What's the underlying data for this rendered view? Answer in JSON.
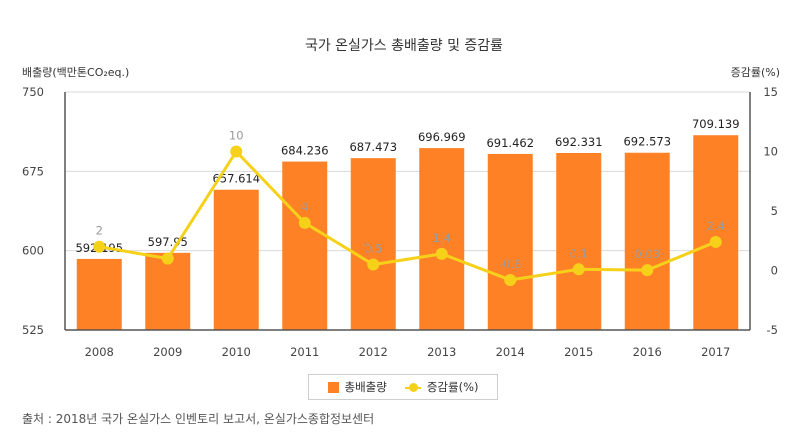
{
  "chart_data": {
    "type": "bar",
    "title": "국가 온실가스 총배출량 및 증감률",
    "ylabel": "배출량(백만톤CO₂eq.)",
    "y2label": "증감률(%)",
    "categories": [
      "2008",
      "2009",
      "2010",
      "2011",
      "2012",
      "2013",
      "2014",
      "2015",
      "2016",
      "2017"
    ],
    "ylim": [
      525,
      750
    ],
    "yticks": [
      525,
      600,
      675,
      750
    ],
    "y2lim": [
      -5,
      15
    ],
    "y2ticks": [
      -5,
      0,
      5,
      10,
      15
    ],
    "grid": true,
    "legend_position": "bottom",
    "series": [
      {
        "name": "총배출량",
        "type": "bar",
        "axis": "left",
        "color": "#ff8125",
        "values": [
          592.195,
          597.95,
          657.614,
          684.236,
          687.473,
          696.969,
          691.462,
          692.331,
          692.573,
          709.139
        ],
        "labels": [
          "592.195",
          "597.95",
          "657.614",
          "684.236",
          "687.473",
          "696.969",
          "691.462",
          "692.331",
          "692.573",
          "709.139"
        ]
      },
      {
        "name": "증감률(%)",
        "type": "line",
        "axis": "right",
        "color": "#f5d11a",
        "values": [
          2,
          1.0,
          10,
          4,
          0.5,
          1.4,
          -0.8,
          0.1,
          0.03,
          2.4
        ],
        "labels": [
          "2",
          "",
          "10",
          "4",
          "0.5",
          "1.4",
          "-0.8",
          "0.1",
          "0.03",
          "2.4"
        ]
      }
    ]
  },
  "legend": {
    "bar_label": "총배출량",
    "line_label": "증감률(%)"
  },
  "source_note": "출처 : 2018년 국가 온실가스 인벤토리 보고서, 온실가스종합정보센터"
}
